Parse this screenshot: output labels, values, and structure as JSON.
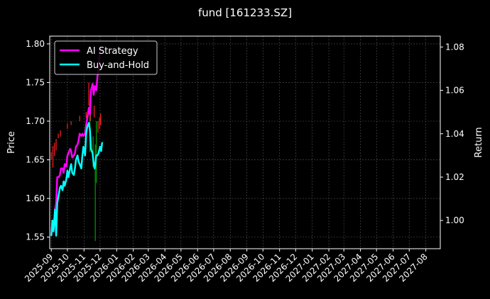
{
  "chart_data": {
    "type": "line",
    "title": "fund [161233.SZ]",
    "ylabel_left": "Price",
    "ylabel_right": "Return",
    "ylim_left": [
      1.535,
      1.81
    ],
    "ylim_right": [
      0.987,
      1.085
    ],
    "left_ticks": [
      "1.55",
      "1.60",
      "1.65",
      "1.70",
      "1.75",
      "1.80"
    ],
    "right_ticks": [
      "1.00",
      "1.02",
      "1.04",
      "1.06",
      "1.08"
    ],
    "x_ticks": [
      "2025-09",
      "2025-10",
      "2025-11",
      "2025-12",
      "2026-01",
      "2026-02",
      "2026-03",
      "2026-04",
      "2026-05",
      "2026-06",
      "2026-07",
      "2026-08",
      "2026-09",
      "2026-10",
      "2026-11",
      "2026-12",
      "2027-01",
      "2027-02",
      "2027-03",
      "2027-04",
      "2027-05",
      "2027-06",
      "2027-07",
      "2027-08"
    ],
    "grid": true,
    "legend_position": "top-left",
    "series": [
      {
        "name": "AI Strategy",
        "color": "#ff00ff",
        "axis": "right",
        "x": [
          "2025-09-01",
          "2025-09-03",
          "2025-09-05",
          "2025-09-08",
          "2025-09-10",
          "2025-09-12",
          "2025-09-15",
          "2025-09-17",
          "2025-09-19",
          "2025-09-22",
          "2025-09-24",
          "2025-09-26",
          "2025-09-29",
          "2025-10-01",
          "2025-10-03",
          "2025-10-06",
          "2025-10-08",
          "2025-10-10",
          "2025-10-13",
          "2025-10-15",
          "2025-10-17",
          "2025-10-20",
          "2025-10-22",
          "2025-10-24",
          "2025-10-27",
          "2025-10-29",
          "2025-10-31",
          "2025-11-03",
          "2025-11-05",
          "2025-11-07",
          "2025-11-10",
          "2025-11-12",
          "2025-11-14",
          "2025-11-17",
          "2025-11-19",
          "2025-11-21",
          "2025-11-24",
          "2025-11-26",
          "2025-11-28",
          "2025-12-01"
        ],
        "values": [
          0.993,
          1.0,
          0.995,
          1.005,
          1.008,
          1.02,
          1.02,
          1.021,
          1.024,
          1.024,
          1.022,
          1.026,
          1.025,
          1.03,
          1.031,
          1.033,
          1.032,
          1.029,
          1.03,
          1.031,
          1.034,
          1.035,
          1.037,
          1.04,
          1.039,
          1.04,
          1.039,
          1.04,
          1.044,
          1.047,
          1.052,
          1.049,
          1.06,
          1.063,
          1.058,
          1.062,
          1.06,
          1.066,
          1.07,
          1.08
        ]
      },
      {
        "name": "Buy-and-Hold",
        "color": "#00ffff",
        "axis": "right",
        "x": [
          "2025-09-01",
          "2025-09-03",
          "2025-09-05",
          "2025-09-08",
          "2025-09-10",
          "2025-09-12",
          "2025-09-15",
          "2025-09-17",
          "2025-09-19",
          "2025-09-22",
          "2025-09-24",
          "2025-09-26",
          "2025-09-29",
          "2025-10-01",
          "2025-10-03",
          "2025-10-06",
          "2025-10-08",
          "2025-10-10",
          "2025-10-13",
          "2025-10-15",
          "2025-10-17",
          "2025-10-20",
          "2025-10-22",
          "2025-10-24",
          "2025-10-27",
          "2025-10-29",
          "2025-10-31",
          "2025-11-03",
          "2025-11-05",
          "2025-11-07",
          "2025-11-10",
          "2025-11-12",
          "2025-11-14",
          "2025-11-17",
          "2025-11-19",
          "2025-11-21",
          "2025-11-24",
          "2025-11-26",
          "2025-11-28",
          "2025-12-01",
          "2025-12-03",
          "2025-12-05"
        ],
        "values": [
          0.993,
          1.0,
          0.995,
          1.005,
          0.993,
          1.008,
          1.012,
          1.015,
          1.016,
          1.014,
          1.018,
          1.016,
          1.019,
          1.023,
          1.02,
          1.024,
          1.026,
          1.022,
          1.021,
          1.024,
          1.028,
          1.03,
          1.027,
          1.026,
          1.024,
          1.03,
          1.034,
          1.03,
          1.04,
          1.043,
          1.045,
          1.042,
          1.033,
          1.031,
          1.026,
          1.024,
          1.03,
          1.03,
          1.031,
          1.034,
          1.032,
          1.036
        ]
      }
    ],
    "segments": [
      {
        "x": "2025-09-01",
        "y0": 1.65,
        "y1": 1.66,
        "color": "#ff2020"
      },
      {
        "x": "2025-09-04",
        "y0": 1.64,
        "y1": 1.668,
        "color": "#ff2020"
      },
      {
        "x": "2025-09-07",
        "y0": 1.655,
        "y1": 1.672,
        "color": "#ff2020"
      },
      {
        "x": "2025-09-10",
        "y0": 1.662,
        "y1": 1.677,
        "color": "#ff2020"
      },
      {
        "x": "2025-09-14",
        "y0": 1.678,
        "y1": 1.684,
        "color": "#ff2020"
      },
      {
        "x": "2025-09-18",
        "y0": 1.68,
        "y1": 1.688,
        "color": "#ff2020"
      },
      {
        "x": "2025-10-01",
        "y0": 1.69,
        "y1": 1.697,
        "color": "#ff2020"
      },
      {
        "x": "2025-10-08",
        "y0": 1.695,
        "y1": 1.7,
        "color": "#ff2020"
      },
      {
        "x": "2025-10-24",
        "y0": 1.7,
        "y1": 1.707,
        "color": "#ff2020"
      },
      {
        "x": "2025-11-05",
        "y0": 1.704,
        "y1": 1.712,
        "color": "#ff2020"
      },
      {
        "x": "2025-11-10",
        "y0": 1.72,
        "y1": 1.75,
        "color": "#ff2020"
      },
      {
        "x": "2025-11-13",
        "y0": 1.7,
        "y1": 1.725,
        "color": "#ff2020"
      },
      {
        "x": "2025-11-20",
        "y0": 1.705,
        "y1": 1.72,
        "color": "#ff2020"
      },
      {
        "x": "2025-11-27",
        "y0": 1.685,
        "y1": 1.7,
        "color": "#ff2020"
      },
      {
        "x": "2025-11-30",
        "y0": 1.69,
        "y1": 1.705,
        "color": "#ff2020"
      },
      {
        "x": "2025-12-02",
        "y0": 1.695,
        "y1": 1.71,
        "color": "#ff2020"
      },
      {
        "x": "2025-11-12",
        "y0": 1.66,
        "y1": 1.72,
        "color": "#00a000"
      },
      {
        "x": "2025-11-18",
        "y0": 1.64,
        "y1": 1.68,
        "color": "#00a000"
      },
      {
        "x": "2025-11-22",
        "y0": 1.545,
        "y1": 1.67,
        "color": "#00a000"
      },
      {
        "x": "2025-11-24",
        "y0": 1.62,
        "y1": 1.7,
        "color": "#00a000"
      }
    ],
    "range_start": "2025-08-29",
    "range_end": "2027-08-28"
  }
}
